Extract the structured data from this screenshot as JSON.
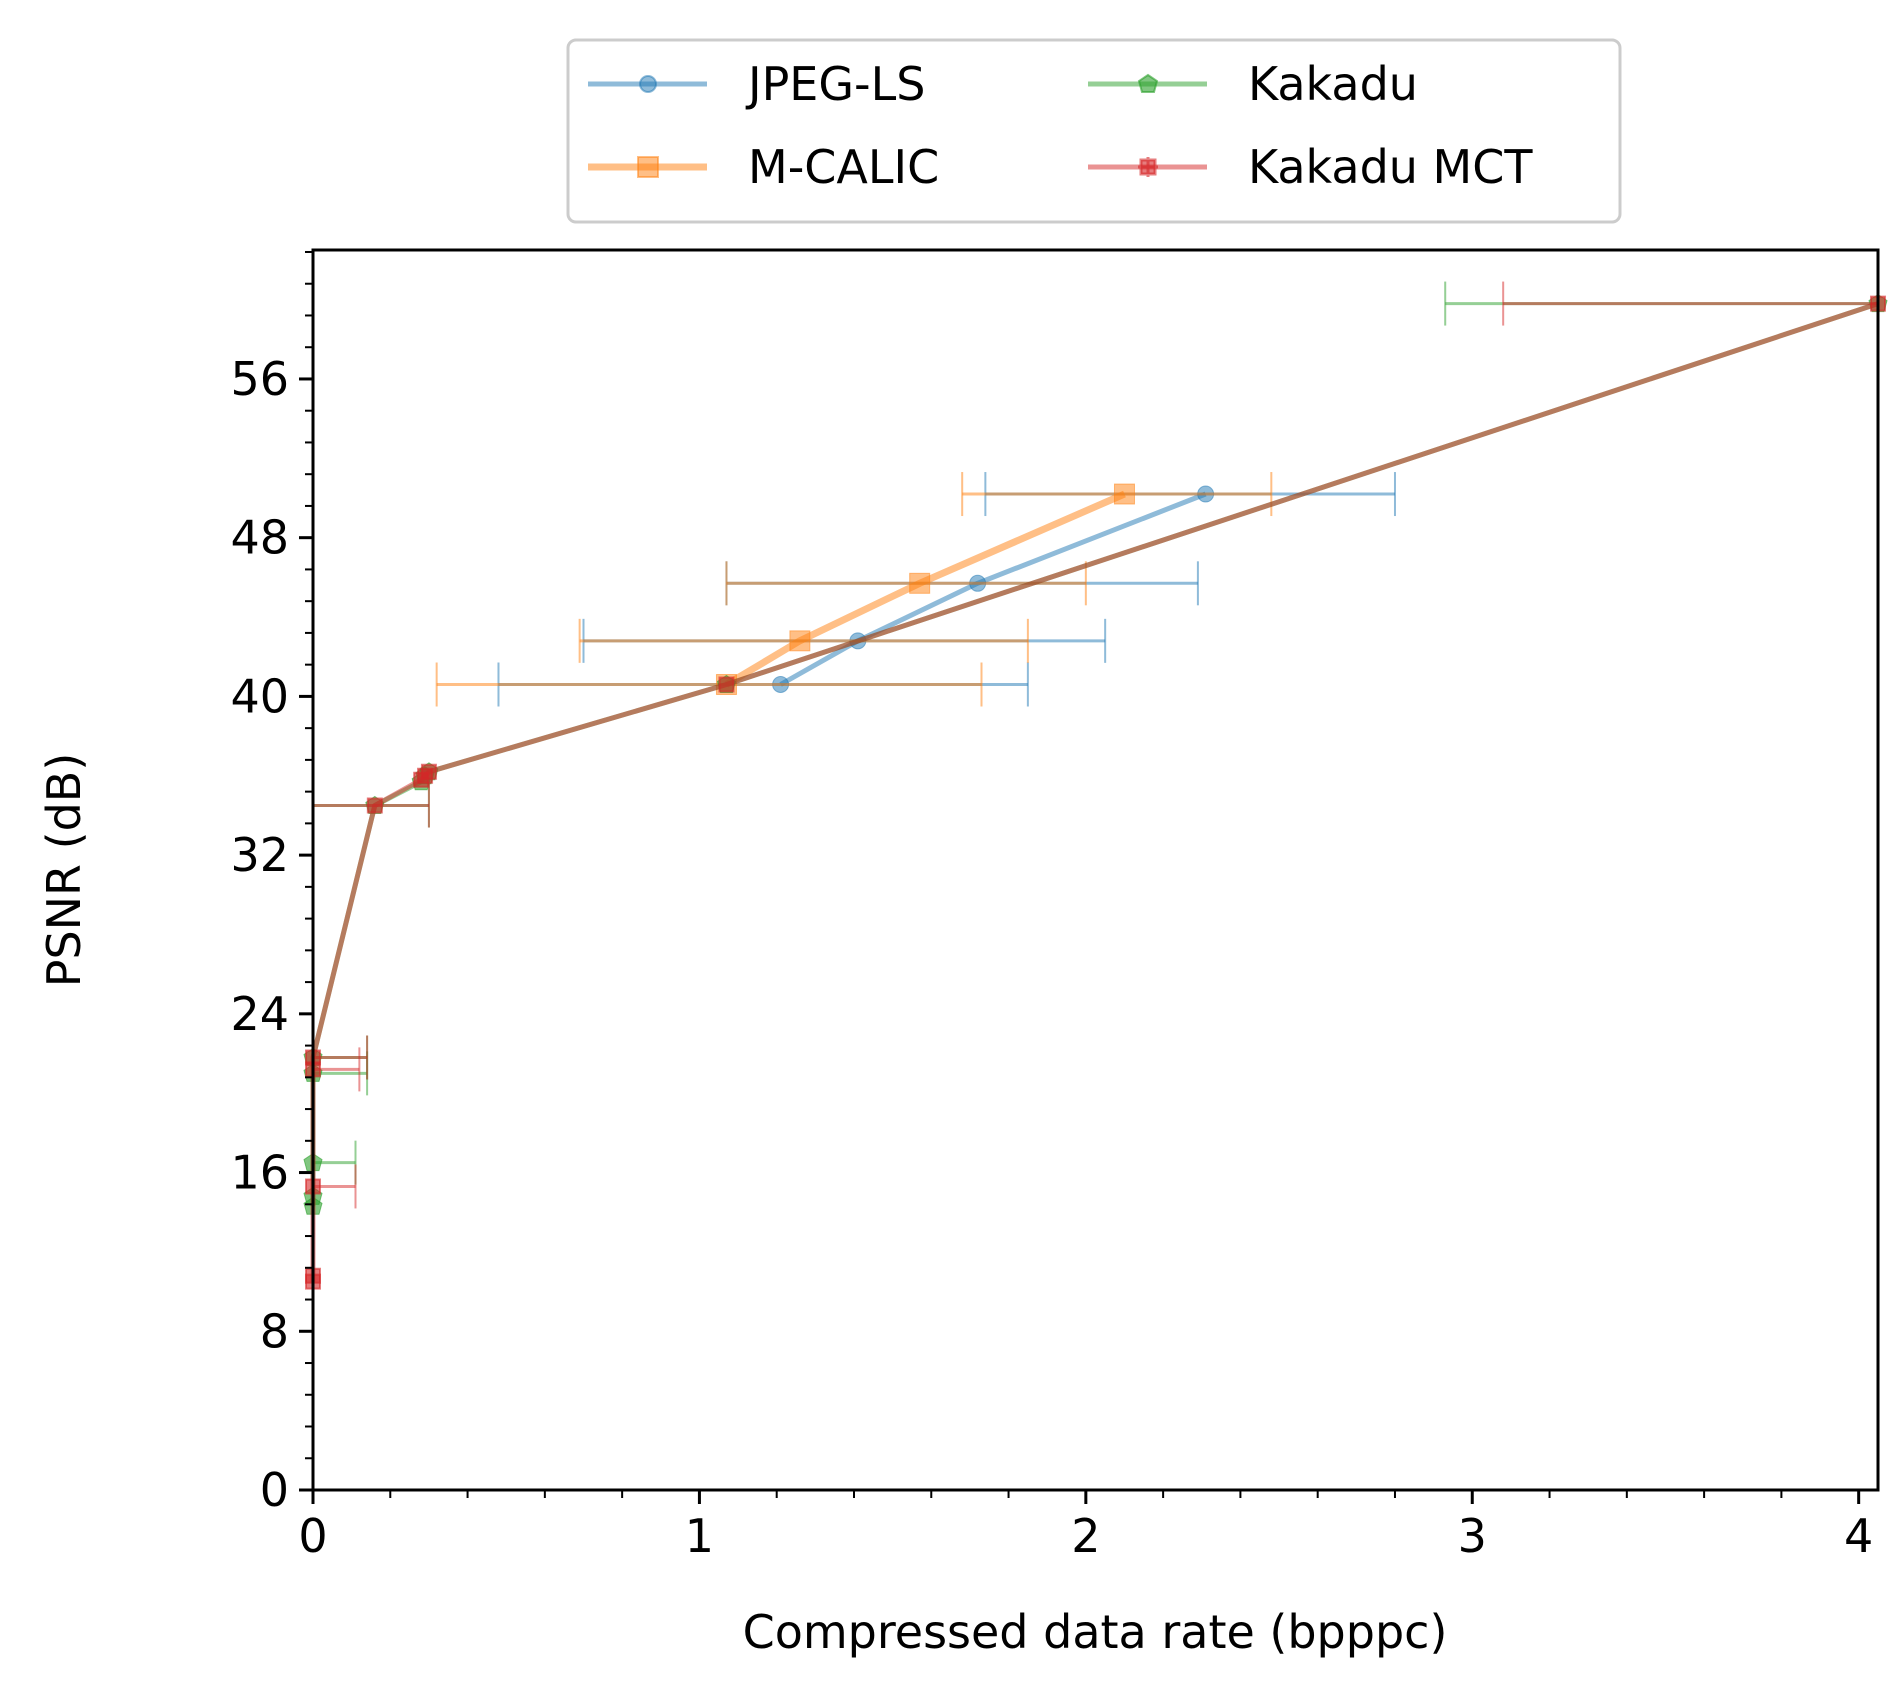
{
  "chart_data": {
    "type": "line",
    "title": "",
    "xlabel": "Compressed data rate (bpppc)",
    "ylabel": "PSNR (dB)",
    "xlim": [
      0,
      4.05
    ],
    "ylim": [
      0,
      62.5
    ],
    "x_ticks": [
      0,
      1,
      2,
      3,
      4
    ],
    "x_tick_labels": [
      "0",
      "1",
      "2",
      "3",
      "4"
    ],
    "y_ticks": [
      0,
      8,
      16,
      24,
      32,
      40,
      48,
      56
    ],
    "y_tick_labels": [
      "0",
      "8",
      "16",
      "24",
      "32",
      "40",
      "48",
      "56"
    ],
    "grid": false,
    "legend": {
      "position": "top-center",
      "columns": 2
    },
    "colors": {
      "JPEG-LS": "#1f77b4",
      "M-CALIC": "#ff7f0e",
      "Kakadu": "#2ca02c",
      "Kakadu MCT": "#d62728"
    },
    "series": [
      {
        "name": "JPEG-LS",
        "marker": "circle",
        "x": [
          1.21,
          1.41,
          1.72,
          2.31
        ],
        "y": [
          40.6,
          42.8,
          45.7,
          50.2
        ],
        "xerr_min": [
          0.48,
          0.7,
          1.07,
          1.74
        ],
        "xerr_max": [
          1.85,
          2.05,
          2.29,
          2.8
        ]
      },
      {
        "name": "M-CALIC",
        "marker": "square",
        "x": [
          1.07,
          1.26,
          1.57,
          2.1
        ],
        "y": [
          40.6,
          42.8,
          45.7,
          50.2
        ],
        "xerr_min": [
          0.32,
          0.69,
          1.07,
          1.68
        ],
        "xerr_max": [
          1.73,
          1.85,
          2.0,
          2.48
        ]
      },
      {
        "name": "Kakadu",
        "marker": "pentagon",
        "x": [
          0.0,
          0.0,
          0.0,
          0.0,
          0.0,
          0.16,
          0.28,
          0.29,
          0.3,
          1.07,
          4.05
        ],
        "y": [
          14.3,
          14.8,
          16.5,
          21.0,
          21.8,
          34.5,
          35.7,
          36.0,
          36.2,
          40.6,
          59.8
        ],
        "xerr_min": [
          0.0,
          0.0,
          0.0,
          0.0,
          0.0,
          0.0,
          0.28,
          0.29,
          0.3,
          1.07,
          2.93
        ],
        "xerr_max": [
          0.0,
          0.0,
          0.11,
          0.14,
          0.14,
          0.3,
          0.28,
          0.29,
          0.3,
          1.07,
          4.05
        ]
      },
      {
        "name": "Kakadu MCT",
        "marker": "plus",
        "x": [
          0.0,
          0.0,
          0.0,
          0.0,
          0.0,
          0.16,
          0.28,
          0.29,
          0.3,
          1.07,
          4.05
        ],
        "y": [
          10.5,
          10.8,
          15.3,
          21.2,
          21.8,
          34.5,
          35.8,
          36.0,
          36.2,
          40.6,
          59.8
        ],
        "xerr_min": [
          0.0,
          0.0,
          0.0,
          0.0,
          0.0,
          0.0,
          0.28,
          0.29,
          0.3,
          1.07,
          3.08
        ],
        "xerr_max": [
          0.0,
          0.0,
          0.11,
          0.12,
          0.14,
          0.3,
          0.28,
          0.29,
          0.3,
          1.07,
          4.05
        ]
      }
    ]
  }
}
